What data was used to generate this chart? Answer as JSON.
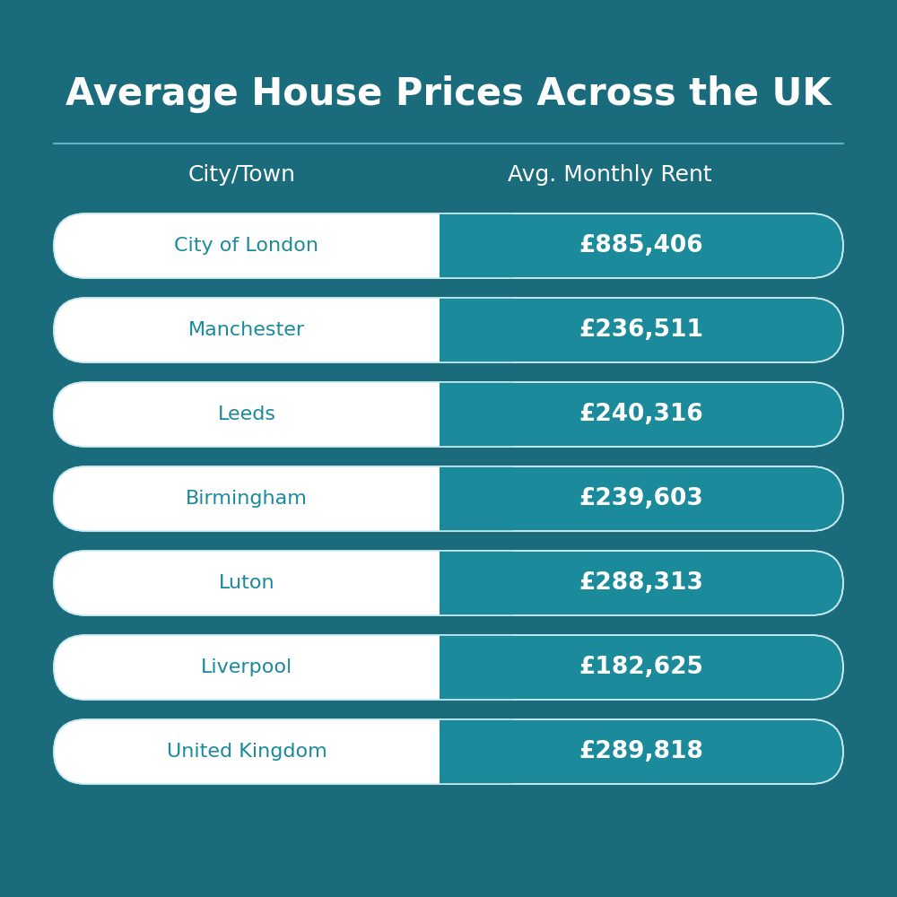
{
  "title": "Average House Prices Across the UK",
  "col1_header": "City/Town",
  "col2_header": "Avg. Monthly Rent",
  "rows": [
    {
      "city": "City of London",
      "price": "£885,406"
    },
    {
      "city": "Manchester",
      "price": "£236,511"
    },
    {
      "city": "Leeds",
      "price": "£240,316"
    },
    {
      "city": "Birmingham",
      "price": "£239,603"
    },
    {
      "city": "Luton",
      "price": "£288,313"
    },
    {
      "city": "Liverpool",
      "price": "£182,625"
    },
    {
      "city": "United Kingdom",
      "price": "£289,818"
    }
  ],
  "bg_color": "#1a6b7c",
  "teal_color": "#1b8a9a",
  "white_color": "#ffffff",
  "title_color": "#ffffff",
  "header_color": "#ffffff",
  "city_text_color": "#1b8a9a",
  "price_text_color": "#ffffff",
  "separator_color": "#5ab8c8",
  "pill_border_color": "#c8e8ef"
}
